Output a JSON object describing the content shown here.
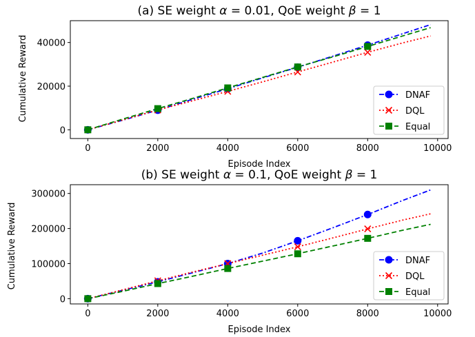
{
  "chart_data": [
    {
      "type": "line",
      "title": "(a) SE weight α = 0.01, QoE weight β = 1",
      "title_parts": {
        "pre": "(a) SE weight ",
        "alpha": "α",
        "mid": " = 0.01, QoE weight ",
        "beta": "β",
        "post": " = 1"
      },
      "xlabel": "Episode Index",
      "ylabel": "Cumulative Reward",
      "xlim": [
        -500,
        10300
      ],
      "ylim": [
        -4000,
        50000
      ],
      "xticks": [
        0,
        2000,
        4000,
        6000,
        8000,
        10000
      ],
      "yticks": [
        0,
        20000,
        40000
      ],
      "grid": false,
      "legend_position": "lower-right",
      "series": [
        {
          "name": "DNAF",
          "color": "#0000ff",
          "dash": "7,3,2,3",
          "marker": "circle",
          "x": [
            0,
            1000,
            2000,
            3000,
            4000,
            5000,
            6000,
            7000,
            8000,
            9000,
            9800
          ],
          "y": [
            0,
            4400,
            9000,
            14000,
            18800,
            23800,
            28700,
            33700,
            38800,
            44000,
            48200
          ],
          "marker_x": [
            0,
            2000,
            4000,
            6000,
            8000
          ],
          "marker_y": [
            0,
            9000,
            18800,
            28700,
            38800
          ]
        },
        {
          "name": "DQL",
          "color": "#ff0000",
          "dash": "2,3",
          "marker": "x",
          "x": [
            0,
            1000,
            2000,
            3000,
            4000,
            5000,
            6000,
            7000,
            8000,
            9000,
            9800
          ],
          "y": [
            0,
            4500,
            9100,
            13300,
            17600,
            22000,
            26500,
            31000,
            35500,
            39800,
            43000
          ],
          "marker_x": [
            0,
            2000,
            4000,
            6000,
            8000
          ],
          "marker_y": [
            0,
            9100,
            17600,
            26500,
            35500
          ]
        },
        {
          "name": "Equal",
          "color": "#008000",
          "dash": "7,4",
          "marker": "square",
          "x": [
            0,
            1000,
            2000,
            3000,
            4000,
            5000,
            6000,
            7000,
            8000,
            9000,
            9800
          ],
          "y": [
            0,
            4900,
            9700,
            14400,
            19200,
            24000,
            28800,
            33400,
            38200,
            43000,
            46800
          ],
          "marker_x": [
            0,
            2000,
            4000,
            6000,
            8000
          ],
          "marker_y": [
            0,
            9700,
            19200,
            28800,
            38200
          ]
        }
      ]
    },
    {
      "type": "line",
      "title": "(b) SE weight α = 0.1, QoE weight β = 1",
      "title_parts": {
        "pre": "(b) SE weight ",
        "alpha": "α",
        "mid": " = 0.1, QoE weight ",
        "beta": "β",
        "post": " = 1"
      },
      "xlabel": "Episode Index",
      "ylabel": "Cumulative Reward",
      "xlim": [
        -500,
        10300
      ],
      "ylim": [
        -15000,
        325000
      ],
      "xticks": [
        0,
        2000,
        4000,
        6000,
        8000,
        10000
      ],
      "yticks": [
        0,
        100000,
        200000,
        300000
      ],
      "grid": false,
      "legend_position": "lower-right",
      "series": [
        {
          "name": "DNAF",
          "color": "#0000ff",
          "dash": "7,3,2,3",
          "marker": "circle",
          "x": [
            0,
            1000,
            2000,
            3000,
            4000,
            5000,
            6000,
            7000,
            8000,
            9000,
            9800
          ],
          "y": [
            0,
            24000,
            48000,
            74000,
            100000,
            130000,
            165000,
            202000,
            240000,
            280000,
            310000
          ],
          "marker_x": [
            0,
            2000,
            4000,
            6000,
            8000
          ],
          "marker_y": [
            0,
            48000,
            100000,
            165000,
            240000
          ]
        },
        {
          "name": "DQL",
          "color": "#ff0000",
          "dash": "2,3",
          "marker": "x",
          "x": [
            0,
            1000,
            2000,
            3000,
            4000,
            5000,
            6000,
            7000,
            8000,
            9000,
            9800
          ],
          "y": [
            0,
            25000,
            51000,
            76000,
            100000,
            124000,
            148000,
            173000,
            199000,
            224000,
            242000
          ],
          "marker_x": [
            0,
            2000,
            4000,
            6000,
            8000
          ],
          "marker_y": [
            0,
            51000,
            100000,
            148000,
            199000
          ]
        },
        {
          "name": "Equal",
          "color": "#008000",
          "dash": "7,4",
          "marker": "square",
          "x": [
            0,
            1000,
            2000,
            3000,
            4000,
            5000,
            6000,
            7000,
            8000,
            9000,
            9800
          ],
          "y": [
            0,
            21000,
            43000,
            64000,
            86000,
            107000,
            128000,
            150000,
            172000,
            195000,
            212000
          ],
          "marker_x": [
            0,
            2000,
            4000,
            6000,
            8000
          ],
          "marker_y": [
            0,
            43000,
            86000,
            128000,
            172000
          ]
        }
      ]
    }
  ]
}
